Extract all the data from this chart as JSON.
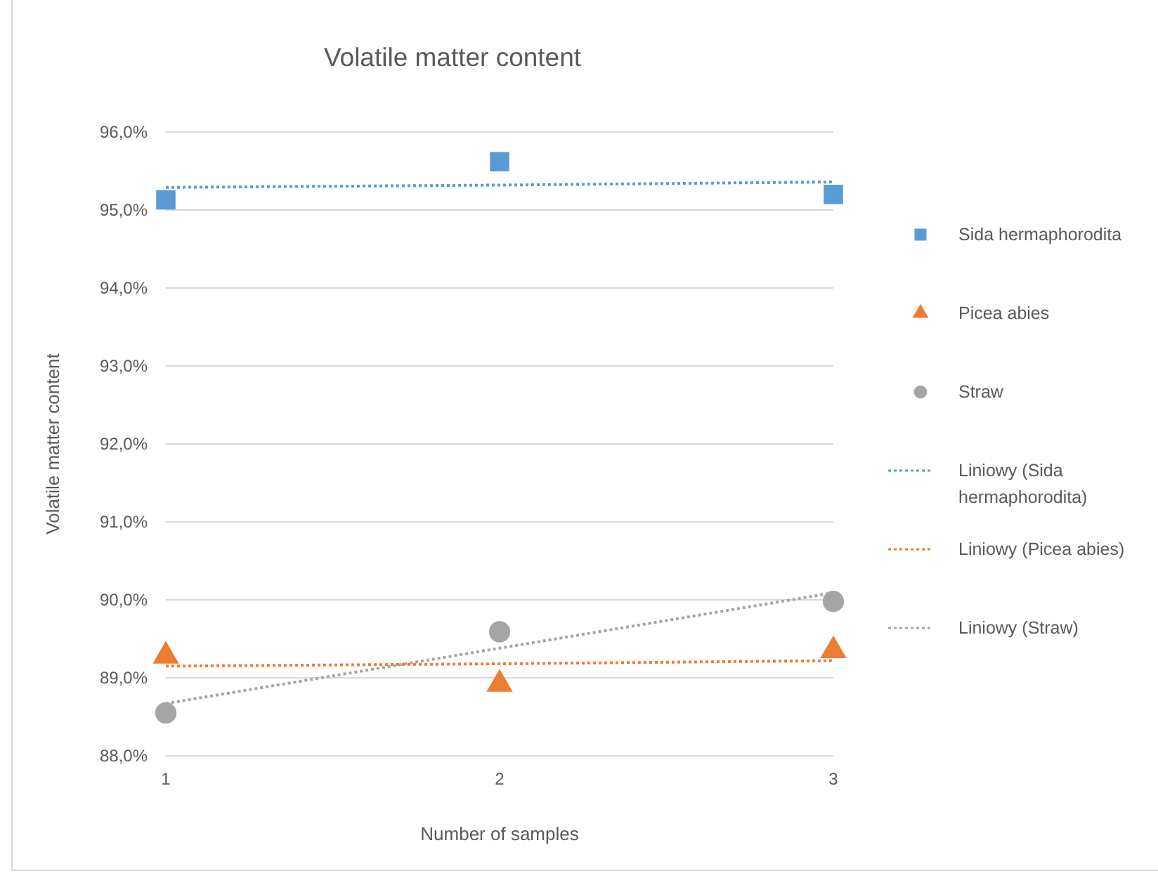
{
  "chart_data": {
    "type": "scatter",
    "title": "Volatile matter content",
    "xlabel": "Number of samples",
    "ylabel": "Volatile matter content",
    "x": [
      1,
      2,
      3
    ],
    "series": [
      {
        "name": "Sida hermaphorodita",
        "color": "#5b9bd5",
        "marker": "square",
        "values": [
          95.13,
          95.62,
          95.2
        ]
      },
      {
        "name": "Picea abies",
        "color": "#ed7d31",
        "marker": "triangle",
        "values": [
          89.28,
          88.92,
          89.35
        ]
      },
      {
        "name": "Straw",
        "color": "#a5a5a5",
        "marker": "circle",
        "values": [
          88.55,
          89.59,
          89.98
        ]
      },
      {
        "name": "Liniowy (Sida hermaphorodita)",
        "type": "line",
        "color": "#5b9bd5",
        "marker": "none",
        "line_style": "dotted",
        "values": [
          95.29,
          95.32,
          95.36
        ]
      },
      {
        "name": "Liniowy (Picea abies)",
        "type": "line",
        "color": "#ed7d31",
        "marker": "none",
        "line_style": "dotted",
        "values": [
          89.15,
          89.18,
          89.22
        ]
      },
      {
        "name": "Liniowy (Straw)",
        "type": "line",
        "color": "#a5a5a5",
        "marker": "none",
        "line_style": "dotted",
        "values": [
          88.67,
          89.38,
          90.09
        ]
      }
    ],
    "xlim": [
      1,
      3
    ],
    "xticks": [
      1,
      2,
      3
    ],
    "ylim": [
      88,
      96
    ],
    "yticks": [
      {
        "value": 88,
        "label": "88,0%"
      },
      {
        "value": 89,
        "label": "89,0%"
      },
      {
        "value": 90,
        "label": "90,0%"
      },
      {
        "value": 91,
        "label": "91,0%"
      },
      {
        "value": 92,
        "label": "92,0%"
      },
      {
        "value": 93,
        "label": "93,0%"
      },
      {
        "value": 94,
        "label": "94,0%"
      },
      {
        "value": 95,
        "label": "95,0%"
      },
      {
        "value": 96,
        "label": "96,0%"
      }
    ],
    "grid": "y",
    "legend": "right"
  }
}
